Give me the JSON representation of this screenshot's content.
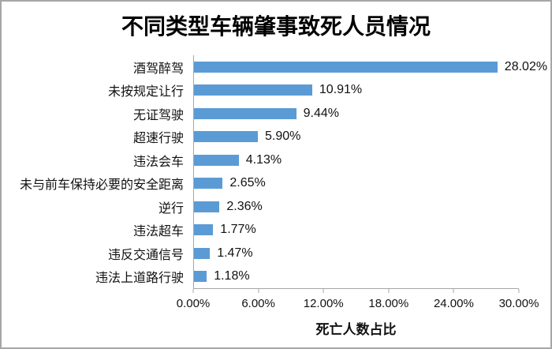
{
  "chart_data": {
    "type": "bar",
    "orientation": "horizontal",
    "title": "不同类型车辆肇事致死人员情况",
    "xlabel": "死亡人数占比",
    "ylabel": "",
    "categories": [
      "酒驾醉驾",
      "未按规定让行",
      "无证驾驶",
      "超速行驶",
      "违法会车",
      "未与前车保持必要的安全距离",
      "逆行",
      "违法超车",
      "违反交通信号",
      "违法上道路行驶"
    ],
    "values": [
      28.02,
      10.91,
      9.44,
      5.9,
      4.13,
      2.65,
      2.36,
      1.77,
      1.47,
      1.18
    ],
    "value_labels": [
      "28.02%",
      "10.91%",
      "9.44%",
      "5.90%",
      "4.13%",
      "2.65%",
      "2.36%",
      "1.77%",
      "1.47%",
      "1.18%"
    ],
    "xlim": [
      0,
      30
    ],
    "x_tick_values": [
      0,
      6,
      12,
      18,
      24,
      30
    ],
    "x_tick_labels": [
      "0.00%",
      "6.00%",
      "12.00%",
      "18.00%",
      "24.00%",
      "30.00%"
    ],
    "grid": false,
    "legend": false,
    "colors": {
      "bar": "#5B9BD5",
      "axis": "#A6A6A6",
      "text": "#111111",
      "title": "#000000",
      "chart_border": "#A6A6A6"
    }
  }
}
